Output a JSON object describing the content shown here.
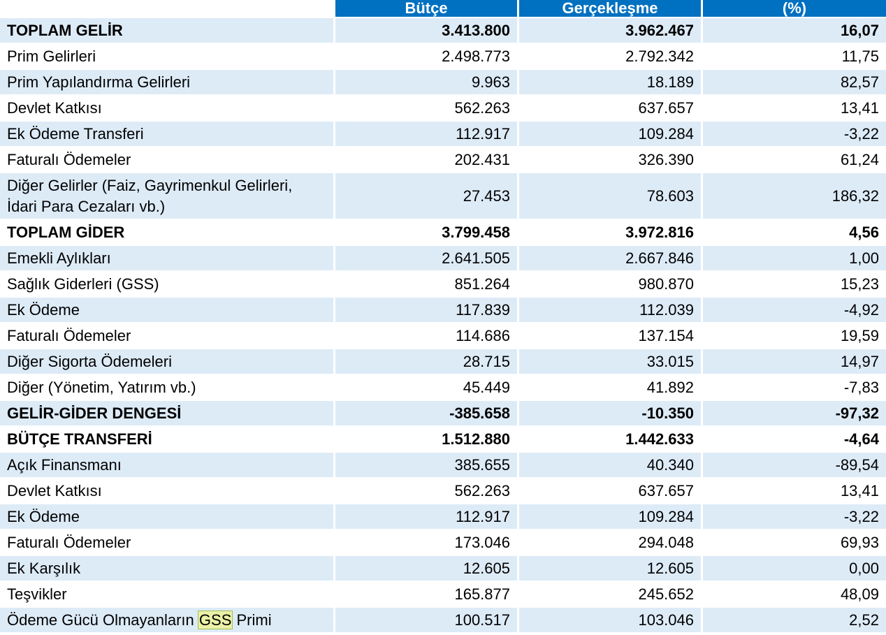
{
  "header": {
    "col0": "",
    "col1": "Bütçe",
    "col2": "Gerçekleşme",
    "col3": "(%)"
  },
  "rows": [
    {
      "label": "TOPLAM GELİR",
      "butce": "3.413.800",
      "gerceklesme": "3.962.467",
      "oran": "16,07",
      "bold": true
    },
    {
      "label": "Prim Gelirleri",
      "butce": "2.498.773",
      "gerceklesme": "2.792.342",
      "oran": "11,75"
    },
    {
      "label": "Prim Yapılandırma Gelirleri",
      "butce": "9.963",
      "gerceklesme": "18.189",
      "oran": "82,57"
    },
    {
      "label": "Devlet Katkısı",
      "butce": "562.263",
      "gerceklesme": "637.657",
      "oran": "13,41"
    },
    {
      "label": "Ek Ödeme Transferi",
      "butce": "112.917",
      "gerceklesme": "109.284",
      "oran": "-3,22"
    },
    {
      "label": "Faturalı Ödemeler",
      "butce": "202.431",
      "gerceklesme": "326.390",
      "oran": "61,24"
    },
    {
      "label": "Diğer Gelirler (Faiz, Gayrimenkul Gelirleri, İdari Para Cezaları vb.)",
      "butce": "27.453",
      "gerceklesme": "78.603",
      "oran": "186,32",
      "tall": true
    },
    {
      "label": "TOPLAM GİDER",
      "butce": "3.799.458",
      "gerceklesme": "3.972.816",
      "oran": "4,56",
      "bold": true
    },
    {
      "label": "Emekli Aylıkları",
      "butce": "2.641.505",
      "gerceklesme": "2.667.846",
      "oran": "1,00"
    },
    {
      "label": "Sağlık Giderleri (GSS)",
      "butce": "851.264",
      "gerceklesme": "980.870",
      "oran": "15,23"
    },
    {
      "label": "Ek Ödeme",
      "butce": "117.839",
      "gerceklesme": "112.039",
      "oran": "-4,92"
    },
    {
      "label": "Faturalı Ödemeler",
      "butce": "114.686",
      "gerceklesme": "137.154",
      "oran": "19,59"
    },
    {
      "label": "Diğer Sigorta Ödemeleri",
      "butce": "28.715",
      "gerceklesme": "33.015",
      "oran": "14,97"
    },
    {
      "label": "Diğer (Yönetim, Yatırım vb.)",
      "butce": "45.449",
      "gerceklesme": "41.892",
      "oran": "-7,83"
    },
    {
      "label": "GELİR-GİDER DENGESİ",
      "butce": "-385.658",
      "gerceklesme": "-10.350",
      "oran": "-97,32",
      "bold": true
    },
    {
      "label": "BÜTÇE TRANSFERİ",
      "butce": "1.512.880",
      "gerceklesme": "1.442.633",
      "oran": "-4,64",
      "bold": true
    },
    {
      "label": "Açık Finansmanı",
      "butce": "385.655",
      "gerceklesme": "40.340",
      "oran": "-89,54"
    },
    {
      "label": "Devlet Katkısı",
      "butce": "562.263",
      "gerceklesme": "637.657",
      "oran": "13,41"
    },
    {
      "label": "Ek Ödeme",
      "butce": "112.917",
      "gerceklesme": "109.284",
      "oran": "-3,22"
    },
    {
      "label": "Faturalı Ödemeler",
      "butce": "173.046",
      "gerceklesme": "294.048",
      "oran": "69,93"
    },
    {
      "label": "Ek Karşılık",
      "butce": "12.605",
      "gerceklesme": "12.605",
      "oran": "0,00"
    },
    {
      "label": "Teşvikler",
      "butce": "165.877",
      "gerceklesme": "245.652",
      "oran": "48,09"
    },
    {
      "label_parts": [
        "Ödeme Gücü Olmayanların ",
        "GSS",
        " Primi"
      ],
      "butce": "100.517",
      "gerceklesme": "103.046",
      "oran": "2,52",
      "highlight_index": 1
    }
  ],
  "colors": {
    "header_bg": "#0070c0",
    "header_text": "#ffffff",
    "stripe_bg": "#ddebf7",
    "highlight_bg": "#ebf1a6"
  }
}
